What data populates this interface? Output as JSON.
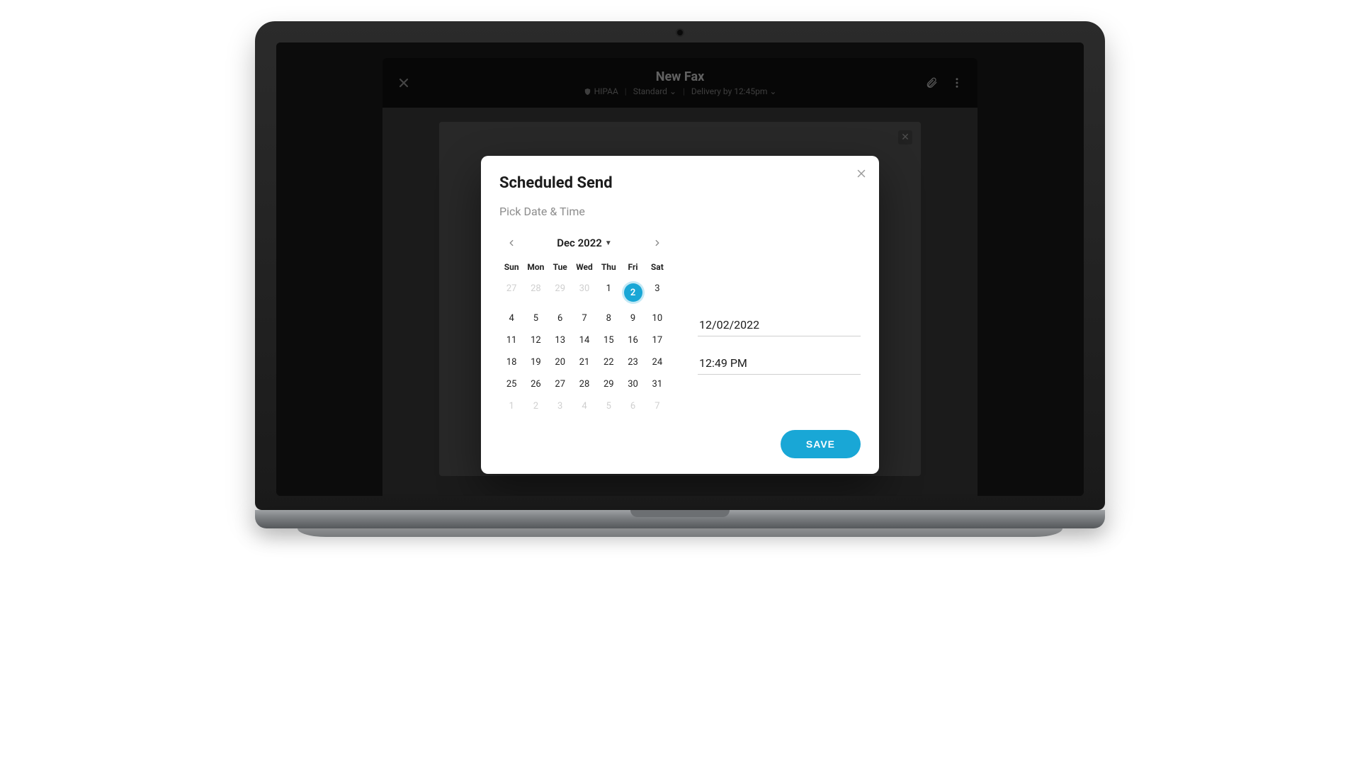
{
  "colors": {
    "accent": "#19a7d6",
    "modal_bg": "#ffffff",
    "muted_text": "#8d8d8d",
    "day_muted": "#cfcfcf",
    "field_border": "#cfcfcf",
    "bezel": "#1a1a1a"
  },
  "header": {
    "title": "New Fax",
    "hipaa_label": "HIPAA",
    "quality_label": "Standard",
    "delivery_label": "Delivery by 12:45pm"
  },
  "modal": {
    "title": "Scheduled Send",
    "subtitle": "Pick Date & Time",
    "save_label": "SAVE"
  },
  "calendar": {
    "month_label": "Dec 2022",
    "dow": [
      "Sun",
      "Mon",
      "Tue",
      "Wed",
      "Thu",
      "Fri",
      "Sat"
    ],
    "selected_day": 2,
    "rows": [
      [
        {
          "n": 27,
          "muted": true
        },
        {
          "n": 28,
          "muted": true
        },
        {
          "n": 29,
          "muted": true
        },
        {
          "n": 30,
          "muted": true
        },
        {
          "n": 1,
          "muted": false
        },
        {
          "n": 2,
          "muted": false
        },
        {
          "n": 3,
          "muted": false
        }
      ],
      [
        {
          "n": 4
        },
        {
          "n": 5
        },
        {
          "n": 6
        },
        {
          "n": 7
        },
        {
          "n": 8
        },
        {
          "n": 9
        },
        {
          "n": 10
        }
      ],
      [
        {
          "n": 11
        },
        {
          "n": 12
        },
        {
          "n": 13
        },
        {
          "n": 14
        },
        {
          "n": 15
        },
        {
          "n": 16
        },
        {
          "n": 17
        }
      ],
      [
        {
          "n": 18
        },
        {
          "n": 19
        },
        {
          "n": 20
        },
        {
          "n": 21
        },
        {
          "n": 22
        },
        {
          "n": 23
        },
        {
          "n": 24
        }
      ],
      [
        {
          "n": 25
        },
        {
          "n": 26
        },
        {
          "n": 27
        },
        {
          "n": 28
        },
        {
          "n": 29
        },
        {
          "n": 30
        },
        {
          "n": 31
        }
      ],
      [
        {
          "n": 1,
          "muted": true
        },
        {
          "n": 2,
          "muted": true
        },
        {
          "n": 3,
          "muted": true
        },
        {
          "n": 4,
          "muted": true
        },
        {
          "n": 5,
          "muted": true
        },
        {
          "n": 6,
          "muted": true
        },
        {
          "n": 7,
          "muted": true
        }
      ]
    ]
  },
  "fields": {
    "date_value": "12/02/2022",
    "time_value": "12:49 PM"
  }
}
